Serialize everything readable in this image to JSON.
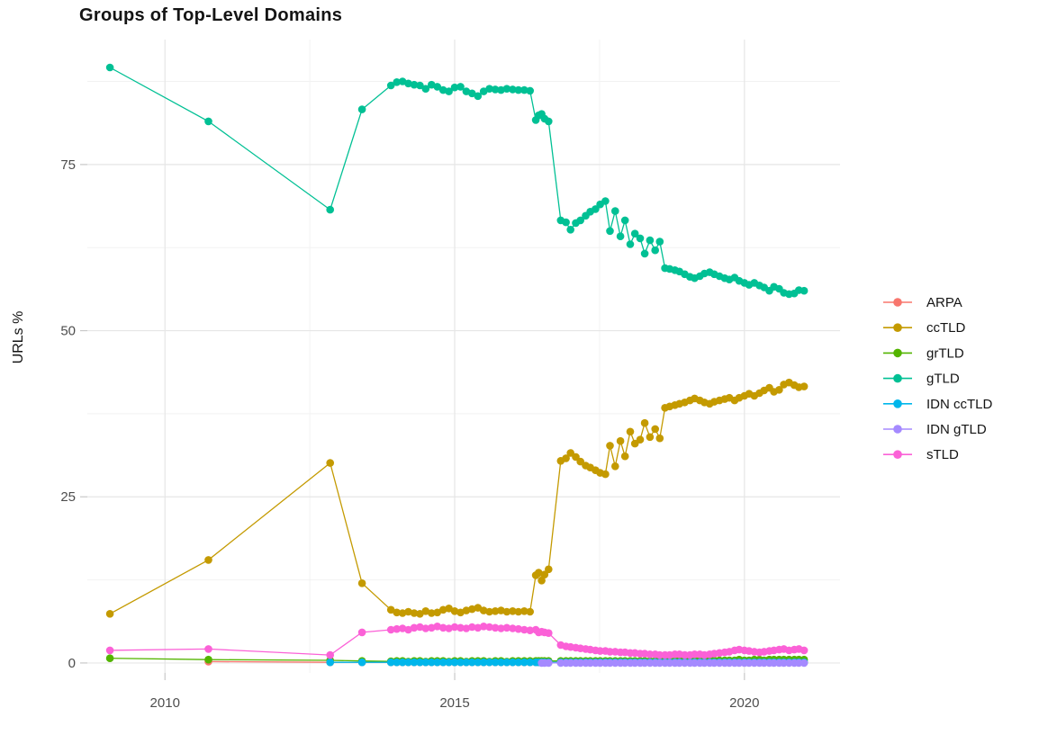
{
  "chart_data": {
    "type": "line",
    "title": "Groups of Top-Level Domains",
    "xlabel": "",
    "ylabel": "URLs %",
    "grid": true,
    "legend_position": "right",
    "point_markers": true,
    "colors": {
      "background": "#ffffff",
      "grid_major": "#e6e6e6",
      "grid_minor": "#f2f2f2",
      "tick": "#c8c8c8",
      "tick_label": "#4d4d4d",
      "text": "#141414"
    },
    "xlim": [
      2008.66,
      2021.65
    ],
    "ylim": [
      -1.5,
      93.8
    ],
    "x_ticks": [
      2010,
      2015,
      2020
    ],
    "x_tick_labels": [
      "2010",
      "2015",
      "2020"
    ],
    "x_minor_ticks": [
      2012.5,
      2017.5
    ],
    "y_ticks": [
      0,
      25,
      50,
      75
    ],
    "y_tick_labels": [
      "0",
      "25",
      "50",
      "75"
    ],
    "y_minor_ticks": [
      12.5,
      37.5,
      62.5,
      87.5
    ],
    "x": [
      2009.05,
      2010.75,
      2012.85,
      2013.4,
      2013.9,
      2014.0,
      2014.1,
      2014.2,
      2014.3,
      2014.4,
      2014.5,
      2014.6,
      2014.7,
      2014.8,
      2014.9,
      2015.0,
      2015.1,
      2015.2,
      2015.3,
      2015.4,
      2015.5,
      2015.6,
      2015.7,
      2015.8,
      2015.9,
      2016.0,
      2016.1,
      2016.2,
      2016.3,
      2016.4,
      2016.45,
      2016.5,
      2016.55,
      2016.62,
      2016.83,
      2016.92,
      2017.0,
      2017.09,
      2017.17,
      2017.26,
      2017.34,
      2017.43,
      2017.51,
      2017.6,
      2017.68,
      2017.77,
      2017.86,
      2017.94,
      2018.03,
      2018.11,
      2018.2,
      2018.28,
      2018.37,
      2018.46,
      2018.54,
      2018.63,
      2018.71,
      2018.8,
      2018.88,
      2018.97,
      2019.06,
      2019.14,
      2019.23,
      2019.31,
      2019.4,
      2019.48,
      2019.57,
      2019.66,
      2019.74,
      2019.83,
      2019.91,
      2020.0,
      2020.08,
      2020.17,
      2020.26,
      2020.34,
      2020.43,
      2020.51,
      2020.6,
      2020.68,
      2020.77,
      2020.86,
      2020.94,
      2021.03
    ],
    "series": [
      {
        "name": "ARPA",
        "color": "#F8766D",
        "values": [
          null,
          0.2,
          0.1,
          0.1,
          0.1,
          0.1,
          0.1,
          0.1,
          0.1,
          0.1,
          0.1,
          0.1,
          0.1,
          0.1,
          0.1,
          0.1,
          0.1,
          0.1,
          0.1,
          0.1,
          0.1,
          0.1,
          0.1,
          0.1,
          0.1,
          0.1,
          0.1,
          0.1,
          0.1,
          0.1,
          0.1,
          0.1,
          0.1,
          0.1,
          0.1,
          0.1,
          0.1,
          0.1,
          0.1,
          0.1,
          0.1,
          0.1,
          0.1,
          0.1,
          0.1,
          0.1,
          0.1,
          0.1,
          0.1,
          0.1,
          0.1,
          0.1,
          0.1,
          0.1,
          0.1,
          0.1,
          0.1,
          0.1,
          0.1,
          0.1,
          0.1,
          0.1,
          0.1,
          0.1,
          0.1,
          0.1,
          0.1,
          0.1,
          0.1,
          0.1,
          0.1,
          0.1,
          0.1,
          0.1,
          0.1,
          0.1,
          0.1,
          0.1,
          0.1,
          0.1,
          0.1,
          0.1,
          0.1,
          0.1
        ]
      },
      {
        "name": "ccTLD",
        "color": "#C49A00",
        "values": [
          7.4,
          15.5,
          30.1,
          12.0,
          8.0,
          7.6,
          7.5,
          7.7,
          7.5,
          7.4,
          7.8,
          7.5,
          7.6,
          8.0,
          8.2,
          7.8,
          7.6,
          7.9,
          8.1,
          8.3,
          7.9,
          7.7,
          7.8,
          7.9,
          7.7,
          7.8,
          7.7,
          7.8,
          7.7,
          13.2,
          13.6,
          12.4,
          13.3,
          14.1,
          30.4,
          30.8,
          31.6,
          31.0,
          30.3,
          29.7,
          29.4,
          29.0,
          28.6,
          28.4,
          32.7,
          29.6,
          33.4,
          31.1,
          34.8,
          33.0,
          33.6,
          36.1,
          34.0,
          35.2,
          33.8,
          38.4,
          38.6,
          38.8,
          39.0,
          39.2,
          39.5,
          39.8,
          39.5,
          39.2,
          39.0,
          39.3,
          39.5,
          39.7,
          39.9,
          39.5,
          39.9,
          40.2,
          40.5,
          40.2,
          40.6,
          41.0,
          41.4,
          40.8,
          41.1,
          41.9,
          42.2,
          41.8,
          41.5,
          41.6
        ]
      },
      {
        "name": "grTLD",
        "color": "#53B400",
        "values": [
          0.7,
          0.5,
          0.4,
          0.3,
          0.25,
          0.3,
          0.3,
          0.2,
          0.3,
          0.3,
          0.2,
          0.3,
          0.3,
          0.3,
          0.2,
          0.3,
          0.3,
          0.2,
          0.3,
          0.3,
          0.3,
          0.2,
          0.3,
          0.3,
          0.2,
          0.3,
          0.3,
          0.3,
          0.3,
          0.3,
          0.3,
          0.3,
          0.3,
          0.3,
          0.3,
          0.3,
          0.3,
          0.3,
          0.3,
          0.3,
          0.3,
          0.3,
          0.3,
          0.3,
          0.3,
          0.3,
          0.3,
          0.3,
          0.3,
          0.3,
          0.3,
          0.3,
          0.3,
          0.3,
          0.3,
          0.4,
          0.3,
          0.3,
          0.4,
          0.4,
          0.3,
          0.4,
          0.4,
          0.4,
          0.4,
          0.4,
          0.4,
          0.4,
          0.4,
          0.4,
          0.5,
          0.4,
          0.4,
          0.5,
          0.5,
          0.4,
          0.5,
          0.5,
          0.5,
          0.5,
          0.5,
          0.5,
          0.5,
          0.5
        ]
      },
      {
        "name": "gTLD",
        "color": "#00C094",
        "values": [
          89.6,
          81.5,
          68.2,
          83.3,
          86.9,
          87.4,
          87.5,
          87.2,
          87.0,
          86.9,
          86.4,
          87.0,
          86.7,
          86.2,
          86.0,
          86.6,
          86.7,
          86.0,
          85.7,
          85.3,
          86.0,
          86.4,
          86.3,
          86.2,
          86.4,
          86.3,
          86.2,
          86.2,
          86.1,
          81.7,
          82.4,
          82.6,
          81.9,
          81.5,
          66.6,
          66.3,
          65.2,
          66.2,
          66.6,
          67.3,
          67.9,
          68.3,
          69.0,
          69.5,
          65.0,
          68.0,
          64.2,
          66.6,
          63.0,
          64.6,
          63.9,
          61.6,
          63.6,
          62.1,
          63.4,
          59.4,
          59.3,
          59.1,
          58.9,
          58.5,
          58.1,
          57.9,
          58.2,
          58.6,
          58.8,
          58.5,
          58.2,
          57.9,
          57.7,
          58.0,
          57.5,
          57.2,
          56.9,
          57.2,
          56.8,
          56.5,
          56.0,
          56.6,
          56.3,
          55.7,
          55.5,
          55.6,
          56.1,
          56.0
        ]
      },
      {
        "name": "IDN ccTLD",
        "color": "#00B6EB",
        "values": [
          null,
          null,
          0.1,
          0.1,
          0.1,
          0.1,
          0.1,
          0.1,
          0.1,
          0.1,
          0.1,
          0.1,
          0.1,
          0.1,
          0.1,
          0.1,
          0.1,
          0.1,
          0.1,
          0.1,
          0.1,
          0.1,
          0.1,
          0.1,
          0.1,
          0.1,
          0.1,
          0.1,
          0.1,
          0.1,
          0.1,
          0.1,
          0.1,
          0.1,
          0.1,
          0.1,
          0.1,
          0.1,
          0.1,
          0.1,
          0.1,
          0.1,
          0.1,
          0.1,
          0.1,
          0.1,
          0.1,
          0.1,
          0.1,
          0.1,
          0.1,
          0.1,
          0.1,
          0.1,
          0.1,
          0.1,
          0.1,
          0.1,
          0.1,
          0.1,
          0.1,
          0.1,
          0.1,
          0.1,
          0.1,
          0.1,
          0.1,
          0.1,
          0.1,
          0.1,
          0.1,
          0.1,
          0.1,
          0.1,
          0.1,
          0.1,
          0.1,
          0.1,
          0.1,
          0.1,
          0.1,
          0.1,
          0.1,
          0.1
        ]
      },
      {
        "name": "IDN gTLD",
        "color": "#A58AFF",
        "values": [
          null,
          null,
          null,
          null,
          null,
          null,
          null,
          null,
          null,
          null,
          null,
          null,
          null,
          null,
          null,
          null,
          null,
          null,
          null,
          null,
          null,
          null,
          null,
          null,
          null,
          null,
          null,
          null,
          null,
          null,
          null,
          0.0,
          0.0,
          0.0,
          0.0,
          0.0,
          0.0,
          0.0,
          0.0,
          0.0,
          0.0,
          0.0,
          0.0,
          0.0,
          0.0,
          0.0,
          0.0,
          0.0,
          0.0,
          0.0,
          0.0,
          0.0,
          0.0,
          0.0,
          0.0,
          0.0,
          0.0,
          0.0,
          0.0,
          0.0,
          0.0,
          0.0,
          0.0,
          0.0,
          0.0,
          0.0,
          0.0,
          0.0,
          0.0,
          0.0,
          0.0,
          0.0,
          0.0,
          0.0,
          0.0,
          0.0,
          0.0,
          0.0,
          0.0,
          0.0,
          0.0,
          0.0,
          0.0,
          0.0
        ]
      },
      {
        "name": "sTLD",
        "color": "#FB61D7",
        "values": [
          1.9,
          2.1,
          1.2,
          4.6,
          5.0,
          5.1,
          5.2,
          5.0,
          5.3,
          5.4,
          5.2,
          5.3,
          5.5,
          5.3,
          5.2,
          5.4,
          5.3,
          5.2,
          5.4,
          5.3,
          5.5,
          5.4,
          5.3,
          5.2,
          5.3,
          5.2,
          5.1,
          5.0,
          4.9,
          5.0,
          4.6,
          4.7,
          4.6,
          4.5,
          2.7,
          2.5,
          2.4,
          2.3,
          2.2,
          2.1,
          2.0,
          1.9,
          1.8,
          1.8,
          1.7,
          1.7,
          1.6,
          1.6,
          1.5,
          1.5,
          1.4,
          1.4,
          1.3,
          1.3,
          1.2,
          1.2,
          1.2,
          1.3,
          1.3,
          1.2,
          1.2,
          1.3,
          1.3,
          1.2,
          1.3,
          1.4,
          1.5,
          1.6,
          1.7,
          1.9,
          2.0,
          1.9,
          1.8,
          1.7,
          1.6,
          1.7,
          1.8,
          1.9,
          2.0,
          2.1,
          1.9,
          2.0,
          2.1,
          1.9
        ]
      }
    ]
  }
}
